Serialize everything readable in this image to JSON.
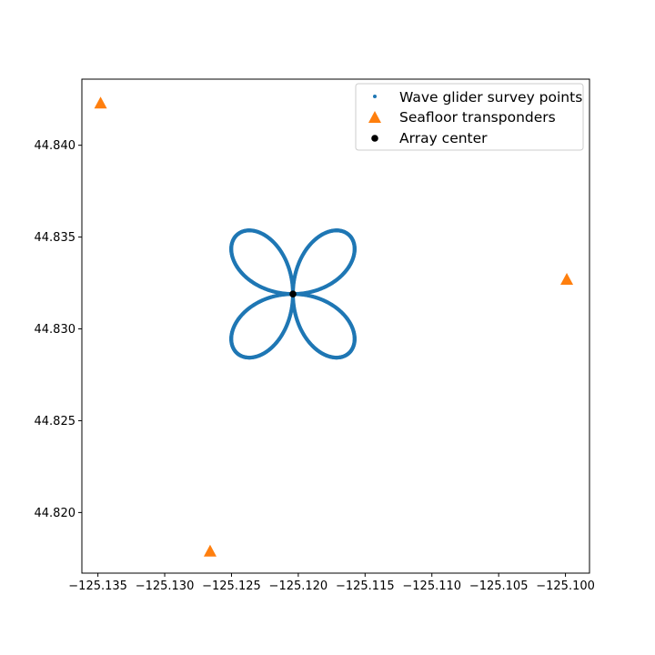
{
  "chart_data": {
    "type": "scatter",
    "title": "",
    "xlabel": "",
    "ylabel": "",
    "xlim": [
      -125.1362,
      -125.0982
    ],
    "ylim": [
      44.8167,
      44.8436
    ],
    "xticks": [
      -125.135,
      -125.13,
      -125.125,
      -125.12,
      -125.115,
      -125.11,
      -125.105,
      -125.1
    ],
    "xtick_labels": [
      "−125.135",
      "−125.130",
      "−125.125",
      "−125.120",
      "−125.115",
      "−125.110",
      "−125.105",
      "−125.100"
    ],
    "yticks": [
      44.82,
      44.825,
      44.83,
      44.835,
      44.84
    ],
    "ytick_labels": [
      "44.820",
      "44.825",
      "44.830",
      "44.835",
      "44.840"
    ],
    "grid": false,
    "legend_position": "top-right",
    "series": [
      {
        "name": "Wave glider survey points",
        "marker": "dot",
        "color": "#1f77b4",
        "shape": "four-leaf clover (rhodonea r = a·|sin 2θ|) centered on array center",
        "lobe_extent_lon": 0.006,
        "lobe_extent_lat": 0.0045
      },
      {
        "name": "Seafloor transponders",
        "marker": "triangle",
        "color": "#ff7f0e",
        "points": [
          {
            "x": -125.1348,
            "y": 44.8423
          },
          {
            "x": -125.0999,
            "y": 44.8327
          },
          {
            "x": -125.1266,
            "y": 44.8179
          }
        ]
      },
      {
        "name": "Array center",
        "marker": "circle",
        "color": "#000000",
        "points": [
          {
            "x": -125.1204,
            "y": 44.8319
          }
        ]
      }
    ]
  }
}
